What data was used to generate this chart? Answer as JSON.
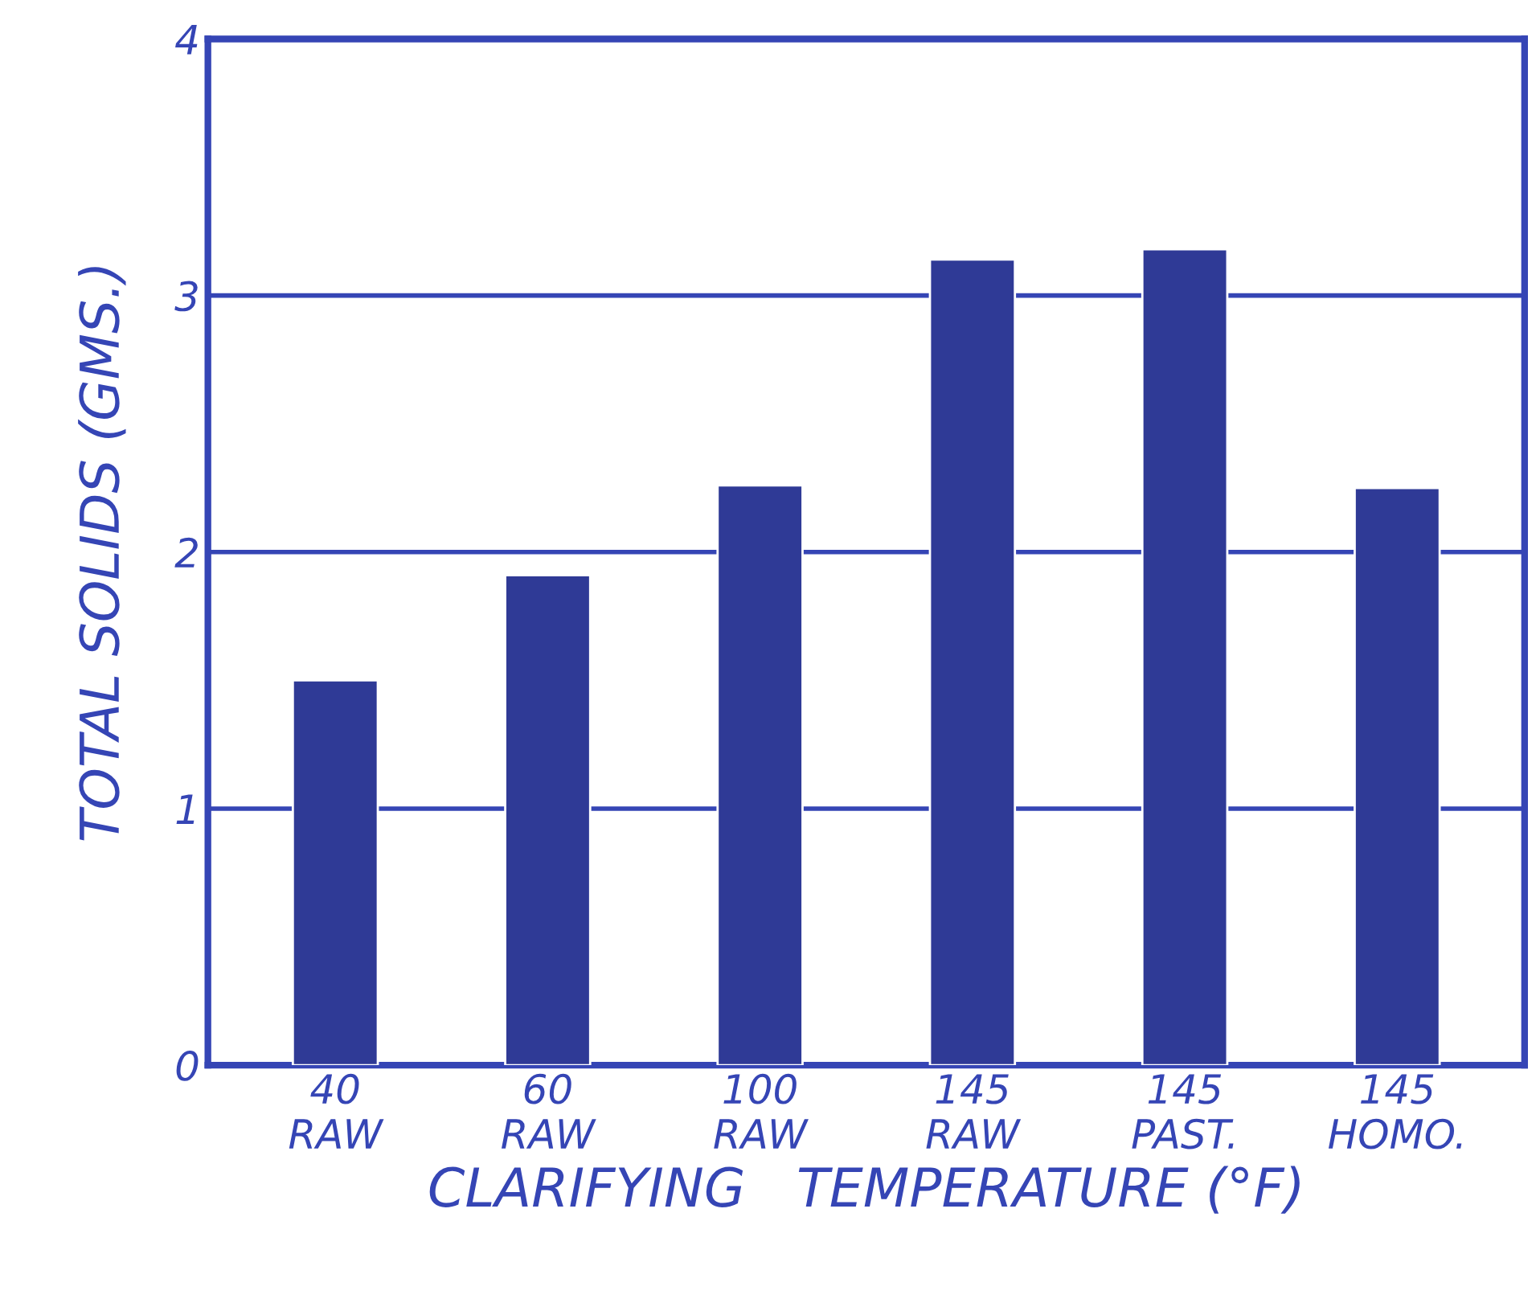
{
  "chart_data": {
    "type": "bar",
    "categories": [
      "40\nRAW",
      "60\nRAW",
      "100\nRAW",
      "145\nRAW",
      "145\nPAST.",
      "145\nHOMO."
    ],
    "values": [
      1.5,
      1.91,
      2.26,
      3.14,
      3.18,
      2.25
    ],
    "color": "#2f3a96",
    "xlabel": "CLARIFYING   TEMPERATURE (°F)",
    "ylabel": "TOTAL SOLIDS (GMS.)",
    "ylim": [
      0,
      4
    ],
    "yticks": [
      0,
      1,
      2,
      3,
      4
    ],
    "grid": "y"
  }
}
